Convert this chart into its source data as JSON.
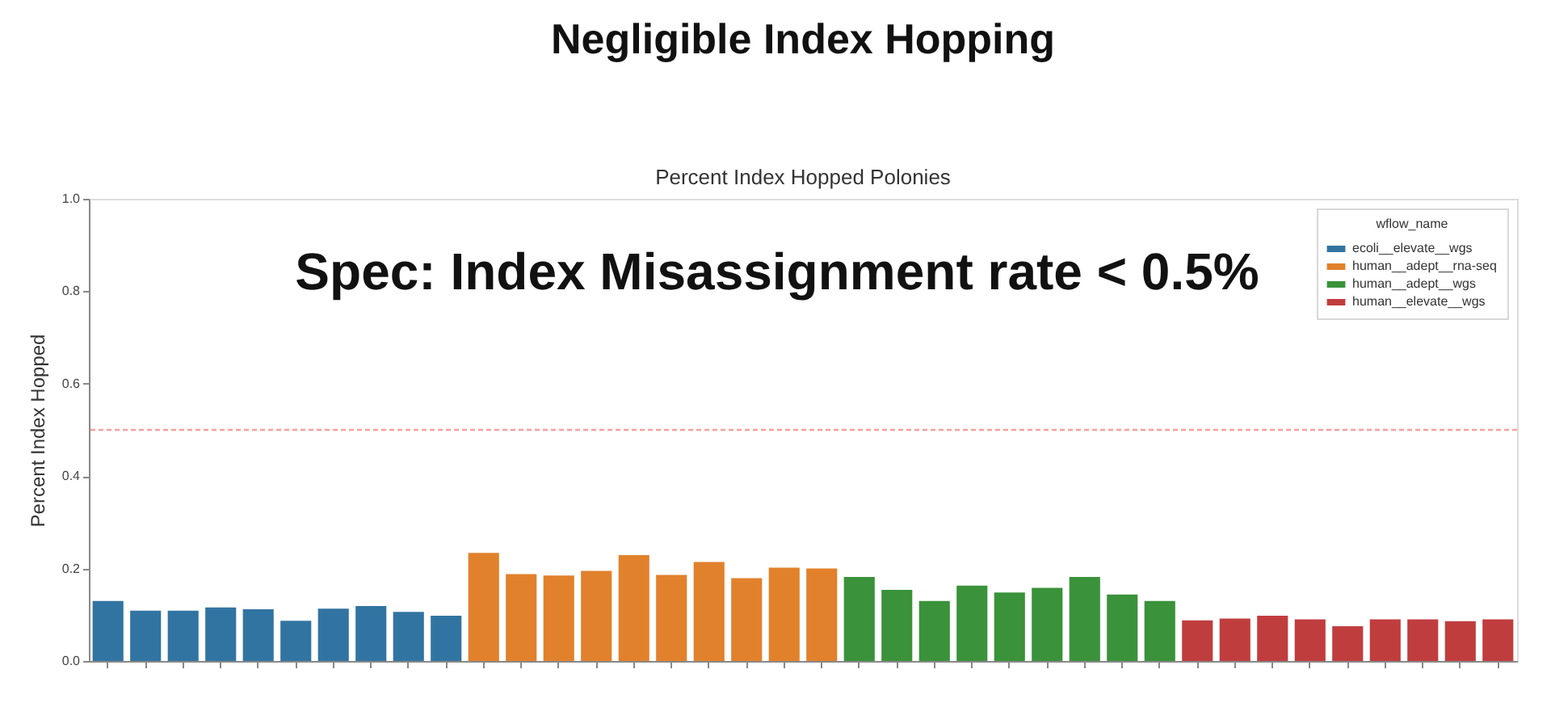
{
  "chart_data": {
    "type": "bar",
    "title": "Negligible Index Hopping",
    "subtitle": "Percent Index Hopped Polonies",
    "ylabel": "Percent Index Hopped",
    "legend_title": "wflow_name",
    "annotations": [
      "Spec: Index Misassignment rate < 0.5%"
    ],
    "categories": [
      null,
      null,
      null,
      null,
      null,
      null,
      null,
      null,
      null,
      null,
      null,
      null,
      null,
      null,
      null,
      null,
      null,
      null,
      null,
      null,
      null,
      null,
      null,
      null,
      null,
      null,
      null,
      null,
      null,
      null,
      null,
      null,
      null,
      null,
      null,
      null,
      null,
      null
    ],
    "series": [
      {
        "name": "ecoli__elevate__wgs",
        "color": "#3274a1",
        "values": [
          0.13,
          0.109,
          0.109,
          0.116,
          0.112,
          0.087,
          0.113,
          0.119,
          0.106,
          0.098,
          null,
          null,
          null,
          null,
          null,
          null,
          null,
          null,
          null,
          null,
          null,
          null,
          null,
          null,
          null,
          null,
          null,
          null,
          null,
          null,
          null,
          null,
          null,
          null,
          null,
          null,
          null,
          null
        ]
      },
      {
        "name": "human__adept__rna-seq",
        "color": "#e1812c",
        "values": [
          null,
          null,
          null,
          null,
          null,
          null,
          null,
          null,
          null,
          null,
          0.234,
          0.188,
          0.185,
          0.195,
          0.229,
          0.186,
          0.214,
          0.179,
          0.202,
          0.2,
          null,
          null,
          null,
          null,
          null,
          null,
          null,
          null,
          null,
          null,
          null,
          null,
          null,
          null,
          null,
          null,
          null,
          null
        ]
      },
      {
        "name": "human__adept__wgs",
        "color": "#3a923a",
        "values": [
          null,
          null,
          null,
          null,
          null,
          null,
          null,
          null,
          null,
          null,
          null,
          null,
          null,
          null,
          null,
          null,
          null,
          null,
          null,
          null,
          0.182,
          0.154,
          0.13,
          0.163,
          0.148,
          0.158,
          0.182,
          0.144,
          0.13,
          null,
          null,
          null,
          null,
          null,
          null,
          null,
          null,
          null
        ]
      },
      {
        "name": "human__elevate__wgs",
        "color": "#c03d3e",
        "values": [
          null,
          null,
          null,
          null,
          null,
          null,
          null,
          null,
          null,
          null,
          null,
          null,
          null,
          null,
          null,
          null,
          null,
          null,
          null,
          null,
          null,
          null,
          null,
          null,
          null,
          null,
          null,
          null,
          null,
          0.088,
          0.092,
          0.098,
          0.09,
          0.075,
          0.09,
          0.09,
          0.086,
          0.09
        ]
      }
    ],
    "ylim": [
      0,
      1
    ],
    "yticks": [
      {
        "value": 0,
        "label": "0.0"
      },
      {
        "value": 0.2,
        "label": "0.2"
      },
      {
        "value": 0.4,
        "label": "0.4"
      },
      {
        "value": 0.6,
        "label": "0.6"
      },
      {
        "value": 0.8,
        "label": "0.8"
      },
      {
        "value": 1,
        "label": "1.0"
      }
    ],
    "ref_lines": [
      {
        "axis": "y",
        "value": 0.5,
        "color": "#f5a0a0",
        "line_style": "dashed"
      }
    ],
    "legend": "top right",
    "grid": false,
    "tick_labels": "y"
  }
}
